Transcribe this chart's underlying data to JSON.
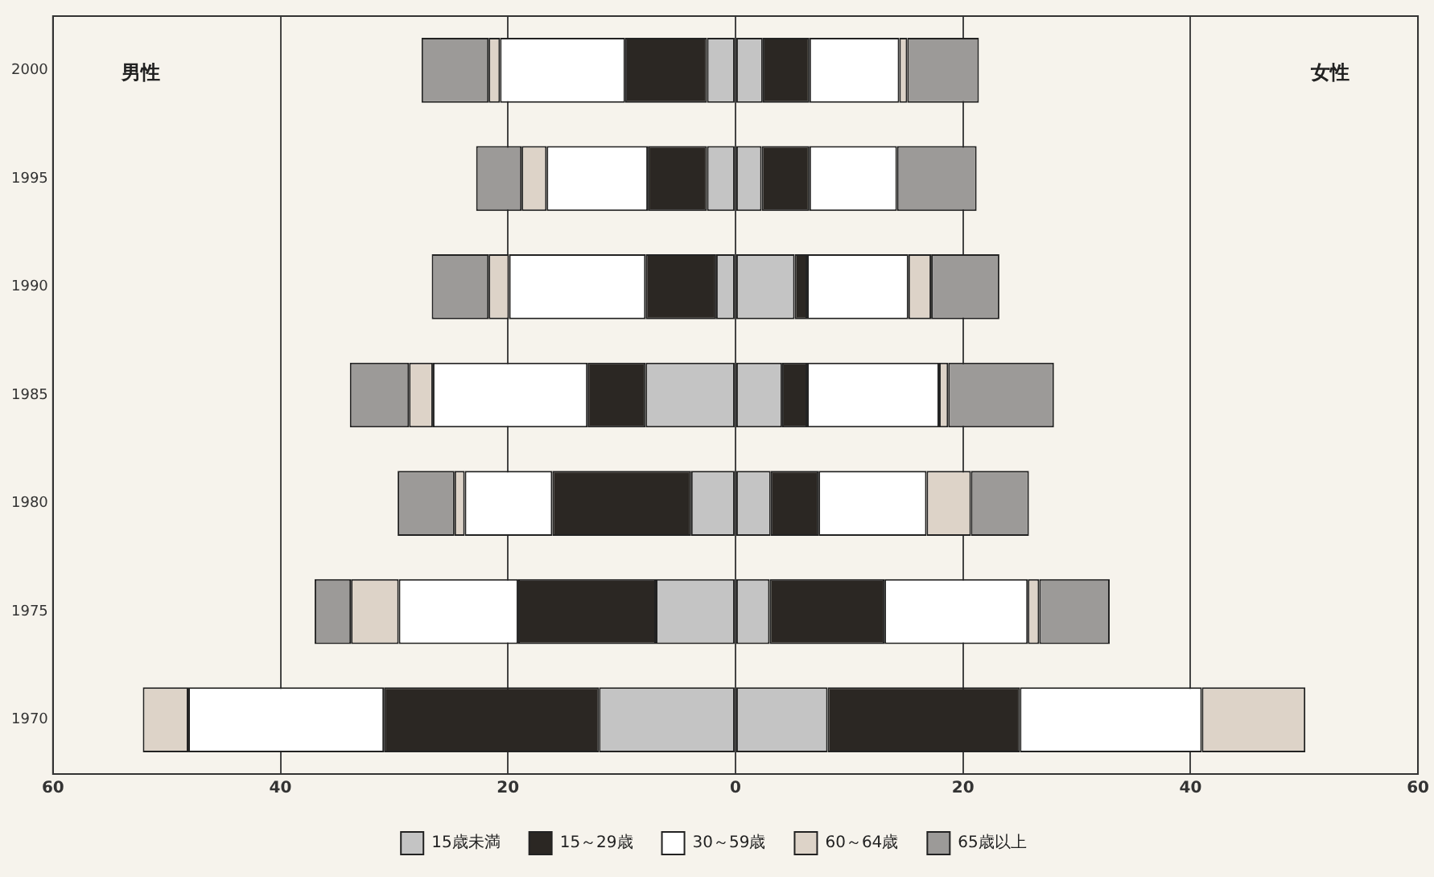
{
  "chart_data": {
    "type": "bar",
    "orientation": "horizontal",
    "stacked": true,
    "categories": [
      "2000",
      "1995",
      "1990",
      "1985",
      "1980",
      "1975",
      "1970"
    ],
    "xlim": [
      -60,
      60
    ],
    "xticks": [
      {
        "value": -60,
        "label": "60"
      },
      {
        "value": -40,
        "label": "40"
      },
      {
        "value": -20,
        "label": "20"
      },
      0,
      20,
      40,
      60
    ],
    "grid": "x",
    "legend": "bottom",
    "annotations": [
      "男性",
      "女性"
    ],
    "series": [
      {
        "color": "#c4c4c4",
        "values": [
          -2.5,
          -2.5,
          -1.7,
          -7.9,
          -3.9,
          -7.0,
          -12.0
        ]
      },
      {
        "color": "#2b2723",
        "values": [
          -7.2,
          -5.2,
          -6.2,
          -5.1,
          -12.2,
          -12.1,
          -18.9
        ]
      },
      {
        "color": "#ffffff",
        "values": [
          -11.0,
          -8.9,
          -12.0,
          -13.6,
          -7.7,
          -10.5,
          -17.2
        ]
      },
      {
        "color": "#ddd3c8",
        "values": [
          -1.0,
          -2.2,
          -1.8,
          -2.1,
          -0.9,
          -4.2,
          -4.0
        ]
      },
      {
        "color": "#9c9a98",
        "values": [
          -5.9,
          -4.0,
          -5.0,
          -5.2,
          -5.0,
          -3.2,
          0
        ]
      },
      {
        "name": "15歳未満",
        "color": "#c4c4c4",
        "values": [
          2.4,
          2.3,
          5.2,
          4.1,
          3.1,
          3.0,
          8.1
        ]
      },
      {
        "name": "15～29歳",
        "color": "#2b2723",
        "values": [
          4.1,
          4.2,
          1.1,
          2.2,
          4.2,
          10.1,
          16.9
        ]
      },
      {
        "name": "30～59歳",
        "color": "#ffffff",
        "values": [
          7.9,
          7.7,
          8.9,
          11.6,
          9.5,
          12.6,
          16.0
        ]
      },
      {
        "name": "60～64歳",
        "color": "#ddd3c8",
        "values": [
          0.7,
          0,
          2.0,
          0.8,
          3.9,
          1.0,
          9.1
        ]
      },
      {
        "name": "65歳以上",
        "color": "#9c9a98",
        "values": [
          6.3,
          7.0,
          6.0,
          9.3,
          5.1,
          6.2,
          0
        ]
      }
    ]
  }
}
